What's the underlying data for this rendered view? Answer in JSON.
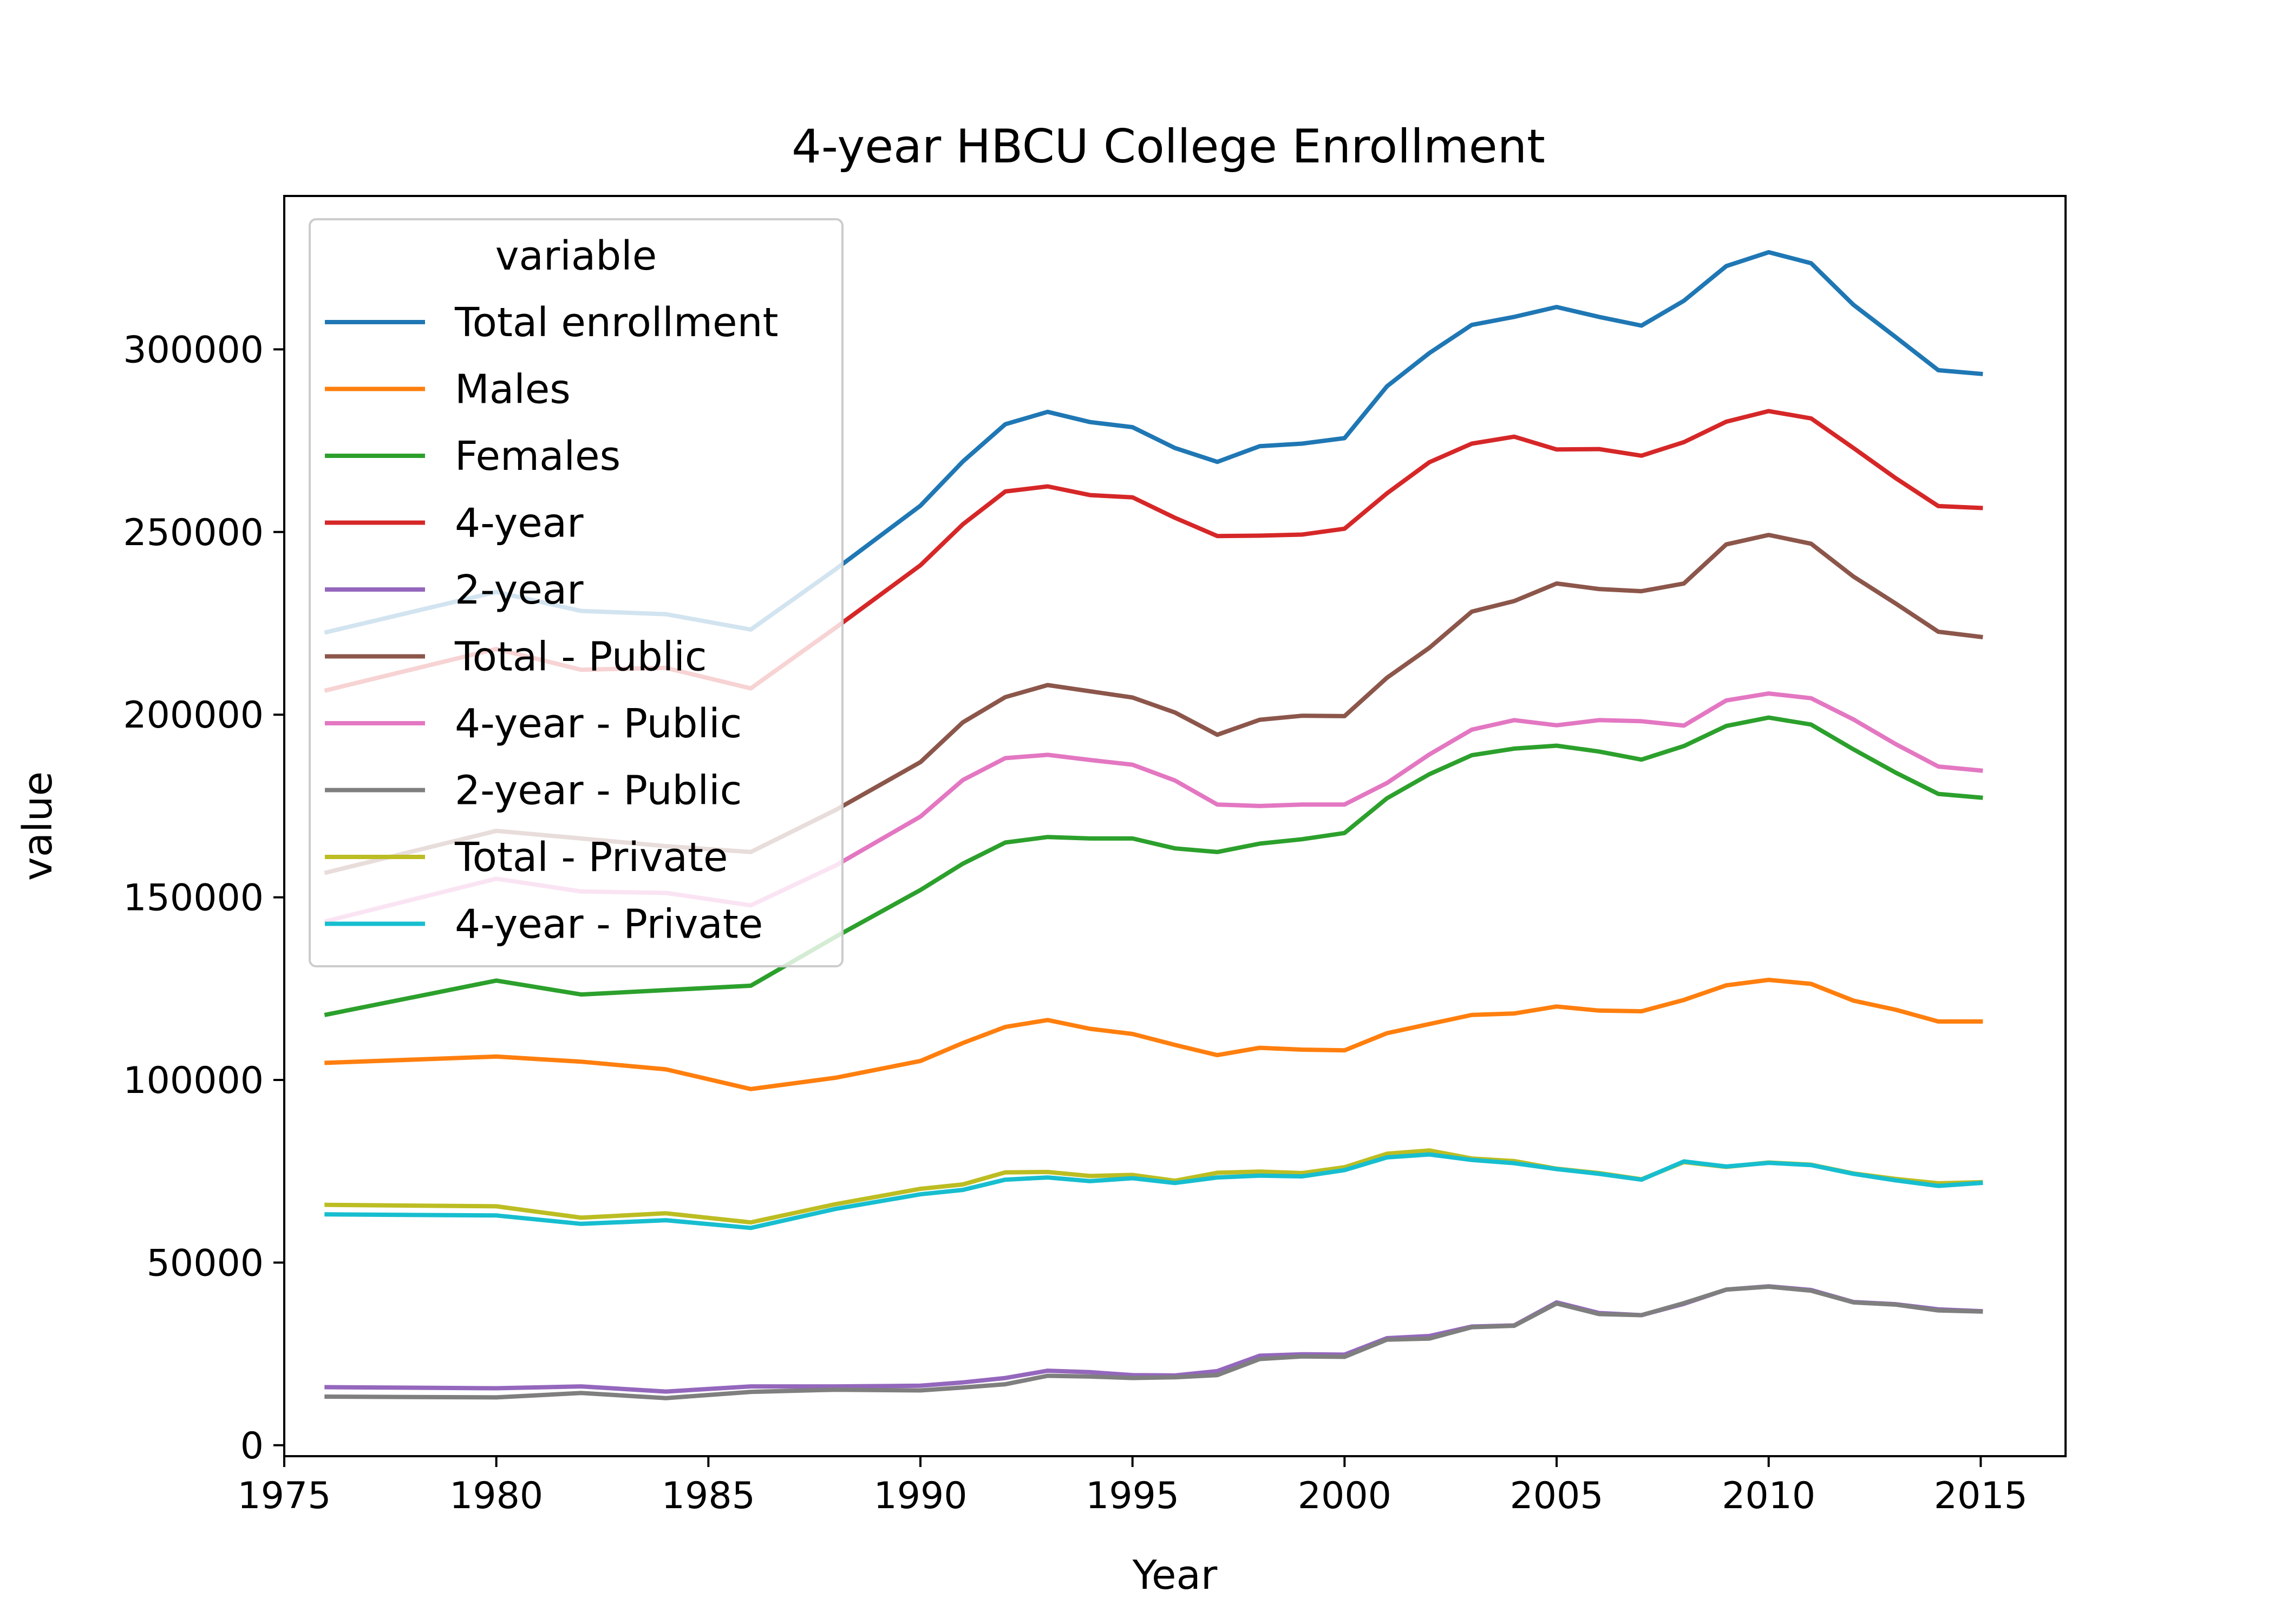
{
  "chart_data": {
    "type": "line",
    "title": "4-year HBCU College Enrollment",
    "xlabel": "Year",
    "ylabel": "value",
    "xlim": [
      1975,
      2017
    ],
    "ylim": [
      -3000,
      342000
    ],
    "xticks": [
      1975,
      1980,
      1985,
      1990,
      1995,
      2000,
      2005,
      2010,
      2015
    ],
    "yticks": [
      0,
      50000,
      100000,
      150000,
      200000,
      250000,
      300000
    ],
    "grid": false,
    "legend": {
      "title": "variable",
      "placement": "upper-left"
    },
    "x": [
      1976,
      1980,
      1982,
      1984,
      1986,
      1988,
      1990,
      1991,
      1992,
      1993,
      1994,
      1995,
      1996,
      1997,
      1998,
      1999,
      2000,
      2001,
      2002,
      2003,
      2004,
      2005,
      2006,
      2007,
      2008,
      2009,
      2010,
      2011,
      2012,
      2013,
      2014,
      2015
    ],
    "series": [
      {
        "name": "Total enrollment",
        "color": "#1f77b4",
        "values": [
          222600,
          233600,
          228400,
          227500,
          223300,
          239800,
          257200,
          269300,
          279500,
          282900,
          280100,
          278700,
          273000,
          269200,
          273500,
          274200,
          275700,
          289900,
          299000,
          306700,
          308900,
          311600,
          308900,
          306500,
          313300,
          322800,
          326600,
          323600,
          312200,
          303300,
          294300,
          293300
        ]
      },
      {
        "name": "Males",
        "color": "#ff7f0e",
        "values": [
          104700,
          106400,
          105000,
          102900,
          97500,
          100600,
          105200,
          110100,
          114500,
          116400,
          114000,
          112600,
          109600,
          106800,
          108800,
          108300,
          108100,
          112800,
          115300,
          117800,
          118200,
          120100,
          119000,
          118800,
          121900,
          125900,
          127400,
          126300,
          121700,
          119200,
          116000,
          116000
        ]
      },
      {
        "name": "Females",
        "color": "#2ca02c",
        "values": [
          117900,
          127200,
          123400,
          124600,
          125800,
          139200,
          152000,
          159200,
          165000,
          166500,
          166100,
          166100,
          163400,
          162400,
          164700,
          165900,
          167600,
          177100,
          183700,
          188900,
          190700,
          191500,
          189900,
          187700,
          191400,
          196900,
          199200,
          197300,
          190500,
          184100,
          178300,
          177300
        ]
      },
      {
        "name": "4-year",
        "color": "#d62728",
        "values": [
          206700,
          218000,
          212300,
          212800,
          207200,
          223800,
          240900,
          252100,
          261100,
          262500,
          260100,
          259500,
          253900,
          248900,
          249000,
          249300,
          250900,
          260600,
          269100,
          274200,
          276100,
          272600,
          272700,
          270900,
          274600,
          280200,
          283100,
          281100,
          273000,
          264700,
          257100,
          256600
        ]
      },
      {
        "name": "2-year",
        "color": "#9467bd",
        "values": [
          15900,
          15600,
          16100,
          14700,
          16100,
          16100,
          16300,
          17200,
          18400,
          20400,
          20000,
          19200,
          19100,
          20300,
          24500,
          24900,
          24800,
          29300,
          29900,
          32500,
          32800,
          39100,
          36200,
          35600,
          38700,
          42600,
          43500,
          42500,
          39200,
          38600,
          37200,
          36700
        ]
      },
      {
        "name": "Total - Public",
        "color": "#8c564b",
        "values": [
          156800,
          168200,
          166100,
          164000,
          162400,
          173900,
          187000,
          197900,
          204800,
          208100,
          206400,
          204700,
          200600,
          194500,
          198600,
          199700,
          199600,
          210100,
          218300,
          228200,
          231100,
          235900,
          234400,
          233800,
          235900,
          246600,
          249200,
          246800,
          237800,
          230400,
          222700,
          221300
        ]
      },
      {
        "name": "4-year - Public",
        "color": "#e377c2",
        "values": [
          143500,
          155100,
          151600,
          151200,
          147800,
          158700,
          172100,
          182100,
          188100,
          189000,
          187600,
          186300,
          182000,
          175400,
          175000,
          175400,
          175400,
          181300,
          189100,
          195900,
          198500,
          197100,
          198500,
          198200,
          197000,
          203900,
          205800,
          204500,
          198700,
          191900,
          185800,
          184700
        ]
      },
      {
        "name": "2-year - Public",
        "color": "#7f7f7f",
        "values": [
          13300,
          13100,
          14300,
          12900,
          14600,
          15200,
          15000,
          15800,
          16700,
          19000,
          18800,
          18400,
          18600,
          19200,
          23600,
          24300,
          24200,
          28900,
          29200,
          32300,
          32700,
          38800,
          35900,
          35600,
          38900,
          42600,
          43400,
          42300,
          39100,
          38500,
          36900,
          36600
        ]
      },
      {
        "name": "Total - Private",
        "color": "#bcbd22",
        "values": [
          65800,
          65400,
          62300,
          63500,
          61000,
          66000,
          70200,
          71400,
          74700,
          74800,
          73700,
          74000,
          72400,
          74600,
          74900,
          74500,
          76100,
          79800,
          80700,
          78500,
          77800,
          75700,
          74500,
          72800,
          77500,
          76200,
          77400,
          76800,
          74400,
          72900,
          71700,
          72000
        ]
      },
      {
        "name": "4-year - Private",
        "color": "#17becf",
        "values": [
          63200,
          62900,
          60600,
          61600,
          59500,
          64700,
          68700,
          69900,
          72700,
          73300,
          72300,
          73100,
          71800,
          73300,
          73800,
          73600,
          75300,
          78800,
          79600,
          78100,
          77200,
          75600,
          74300,
          72700,
          77700,
          76300,
          77300,
          76700,
          74300,
          72500,
          71000,
          71800
        ]
      }
    ]
  }
}
